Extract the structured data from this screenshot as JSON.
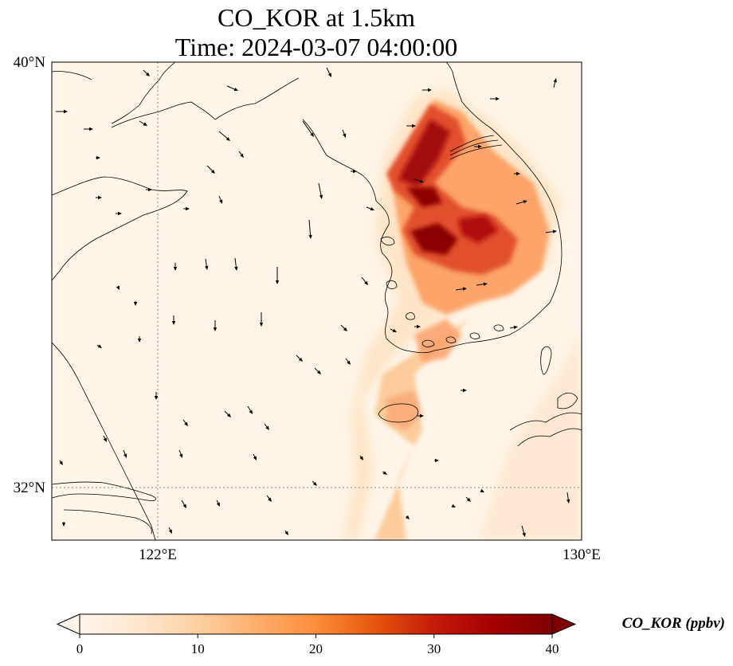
{
  "title": {
    "line1": "CO_KOR at 1.5km",
    "line2": "Time: 2024-03-07 04:00:00"
  },
  "map": {
    "lon_range": [
      120,
      130
    ],
    "lat_range": [
      31,
      40
    ],
    "lat_ticks": [
      {
        "value": 40,
        "label": "40°N"
      },
      {
        "value": 32,
        "label": "32°N"
      }
    ],
    "lon_ticks": [
      {
        "value": 122,
        "label": "122°E"
      },
      {
        "value": 130,
        "label": "130°E"
      }
    ],
    "gridlines": {
      "lon": [
        122
      ],
      "lat": [
        32
      ]
    },
    "colors": {
      "background": "#fef5e8",
      "coast": "#000000",
      "arrow": "#000000"
    }
  },
  "colorbar": {
    "title": "CO_KOR (ppbv)",
    "min": 0,
    "max": 40,
    "ticks": [
      {
        "value": 0,
        "label": "0"
      },
      {
        "value": 10,
        "label": "10"
      },
      {
        "value": 20,
        "label": "20"
      },
      {
        "value": 30,
        "label": "30"
      },
      {
        "value": 40,
        "label": "40"
      }
    ],
    "colors": [
      "#fff5eb",
      "#fee6ce",
      "#fdd0a2",
      "#fdae6b",
      "#fd8d3c",
      "#f16913",
      "#d94801",
      "#a63603",
      "#7f2704"
    ],
    "extend": "both"
  }
}
